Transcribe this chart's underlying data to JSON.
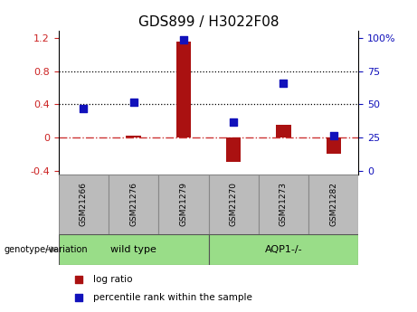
{
  "title": "GDS899 / H3022F08",
  "categories": [
    "GSM21266",
    "GSM21276",
    "GSM21279",
    "GSM21270",
    "GSM21273",
    "GSM21282"
  ],
  "log_ratio": [
    0.0,
    0.02,
    1.15,
    -0.3,
    0.15,
    -0.2
  ],
  "percentile_rank": [
    0.35,
    0.42,
    1.18,
    0.185,
    0.65,
    0.02
  ],
  "bar_color": "#aa1111",
  "dot_color": "#1111bb",
  "ylim": [
    -0.45,
    1.28
  ],
  "yticks_left": [
    -0.4,
    0.0,
    0.4,
    0.8,
    1.2
  ],
  "yticks_left_labels": [
    "-0.4",
    "0",
    "0.4",
    "0.8",
    "1.2"
  ],
  "right_tick_positions": [
    -0.4,
    0.0,
    0.4,
    0.8,
    1.2
  ],
  "right_tick_labels": [
    "0",
    "25",
    "50",
    "75",
    "100%"
  ],
  "hline_color": "#cc3333",
  "dotted_lines": [
    0.4,
    0.8
  ],
  "wild_type_label": "wild type",
  "aqp1_label": "AQP1-/-",
  "genotype_label": "genotype/variation",
  "legend_log_ratio": "log ratio",
  "legend_percentile": "percentile rank within the sample",
  "group_color_wt": "#99dd88",
  "group_color_aqp": "#99dd88",
  "sample_box_color": "#bbbbbb",
  "bar_width": 0.3,
  "dot_size": 40,
  "left_label_color": "#cc2222",
  "right_label_color": "#1111bb",
  "title_fontsize": 11,
  "tick_fontsize": 8,
  "label_fontsize": 8
}
